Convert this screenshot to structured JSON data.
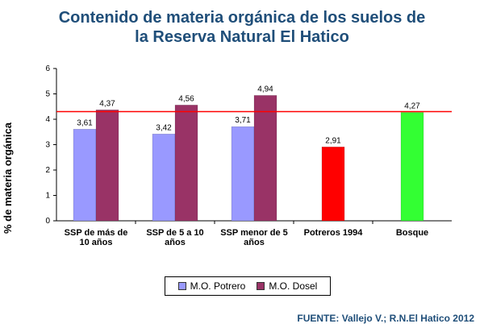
{
  "title": {
    "line1": "Contenido de materia orgánica de los suelos de",
    "line2": "la Reserva Natural El Hatico"
  },
  "source": "FUENTE: Vallejo V.; R.N.El Hatico 2012",
  "chart_data": {
    "type": "bar",
    "ylabel": "% de materia orgánica",
    "ylim": [
      0,
      6
    ],
    "yticks": [
      0,
      1,
      2,
      3,
      4,
      5,
      6
    ],
    "reference_line": {
      "value": 4.3,
      "color": "#ff0000"
    },
    "groups": [
      {
        "label_lines": [
          "SSP de más de",
          "10 años"
        ],
        "bars": [
          {
            "series": "M.O. Potrero",
            "value": 3.61,
            "label": "3,61",
            "color": "#9999ff"
          },
          {
            "series": "M.O. Dosel",
            "value": 4.37,
            "label": "4,37",
            "color": "#993366"
          }
        ]
      },
      {
        "label_lines": [
          "SSP de 5 a 10",
          "años"
        ],
        "bars": [
          {
            "series": "M.O. Potrero",
            "value": 3.42,
            "label": "3,42",
            "color": "#9999ff"
          },
          {
            "series": "M.O. Dosel",
            "value": 4.56,
            "label": "4,56",
            "color": "#993366"
          }
        ]
      },
      {
        "label_lines": [
          "SSP menor de 5",
          "años"
        ],
        "bars": [
          {
            "series": "M.O. Potrero",
            "value": 3.71,
            "label": "3,71",
            "color": "#9999ff"
          },
          {
            "series": "M.O. Dosel",
            "value": 4.94,
            "label": "4,94",
            "color": "#993366"
          }
        ]
      },
      {
        "label_lines": [
          "Potreros 1994"
        ],
        "bars": [
          {
            "series": "",
            "value": 2.91,
            "label": "2,91",
            "color": "#ff0000"
          }
        ]
      },
      {
        "label_lines": [
          "Bosque"
        ],
        "bars": [
          {
            "series": "",
            "value": 4.27,
            "label": "4,27",
            "color": "#33ff33"
          }
        ]
      }
    ],
    "legend": {
      "placement": "bottom",
      "items": [
        {
          "name": "M.O. Potrero",
          "color": "#9999ff"
        },
        {
          "name": "M.O. Dosel",
          "color": "#993366"
        }
      ]
    }
  }
}
